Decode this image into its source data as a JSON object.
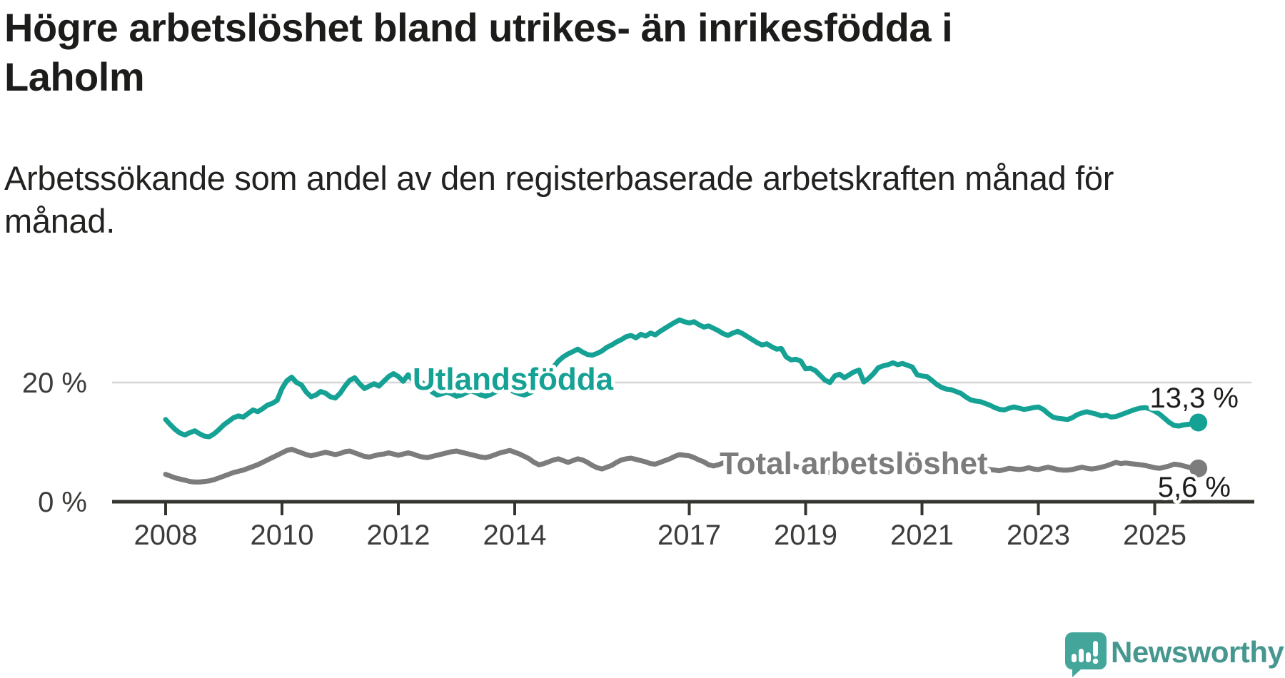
{
  "header": {
    "title": "Högre arbetslöshet bland utrikes- än inrikesfödda i Laholm",
    "subtitle": "Arbetssökande som andel av den registerbaserade arbetskraften månad för månad."
  },
  "footer": {
    "brand": "Newsworthy",
    "logo_icon": "newsworthy-speech-bubble-bar-chart-icon",
    "brand_color": "#46978f",
    "bubble_color": "#44a59b"
  },
  "chart_data": {
    "type": "line",
    "unit": "%",
    "frequency": "monthly",
    "x_start": "2008-01",
    "x_end": "2025-10",
    "grid": "horizontal-gridline-at-20-only",
    "legend_position": "inline-labels-on-lines",
    "x_ticks": [
      2008,
      2010,
      2012,
      2014,
      2017,
      2019,
      2021,
      2023,
      2025
    ],
    "y_ticks": [
      {
        "value": 0,
        "label": "0 %"
      },
      {
        "value": 20,
        "label": "20 %"
      }
    ],
    "ylim": [
      0,
      32
    ],
    "axis_color": "#35342f",
    "tick_label_color": "#3c3c3a",
    "gridline_color": "#d6d6d6",
    "end_label_color": "#1d1d1b",
    "series": [
      {
        "name": "Utlandsfödda",
        "color": "#15a295",
        "end_label": "13,3 %",
        "end_value": 13.3,
        "values": [
          13.8,
          12.9,
          12.1,
          11.5,
          11.2,
          11.6,
          11.9,
          11.4,
          11.0,
          10.9,
          11.4,
          12.1,
          12.9,
          13.5,
          14.1,
          14.4,
          14.2,
          14.8,
          15.4,
          15.1,
          15.6,
          16.2,
          16.5,
          17.0,
          19.0,
          20.3,
          20.9,
          20.0,
          19.6,
          18.4,
          17.6,
          17.9,
          18.5,
          18.2,
          17.6,
          17.4,
          18.2,
          19.4,
          20.4,
          20.8,
          19.8,
          19.0,
          19.4,
          19.8,
          19.4,
          20.2,
          21.0,
          21.5,
          21.0,
          20.2,
          21.3,
          20.4,
          19.8,
          19.9,
          19.2,
          18.4,
          17.9,
          18.1,
          18.4,
          18.1,
          17.7,
          17.9,
          18.3,
          18.6,
          18.3,
          17.9,
          17.7,
          18.0,
          18.4,
          18.8,
          19.1,
          18.8,
          18.4,
          18.1,
          17.9,
          18.2,
          18.7,
          19.3,
          20.1,
          21.3,
          22.6,
          23.6,
          24.3,
          24.8,
          25.2,
          25.6,
          25.1,
          24.7,
          24.6,
          24.9,
          25.3,
          25.9,
          26.3,
          26.8,
          27.2,
          27.7,
          27.9,
          27.5,
          28.1,
          27.8,
          28.3,
          28.0,
          28.6,
          29.1,
          29.6,
          30.1,
          30.5,
          30.2,
          30.0,
          30.2,
          29.7,
          29.3,
          29.5,
          29.1,
          28.7,
          28.2,
          27.9,
          28.3,
          28.6,
          28.2,
          27.7,
          27.2,
          26.7,
          26.3,
          26.5,
          26.0,
          25.6,
          25.7,
          24.3,
          23.8,
          23.9,
          23.6,
          22.3,
          22.4,
          22.0,
          21.2,
          20.4,
          20.0,
          21.1,
          21.4,
          20.8,
          21.3,
          21.8,
          22.1,
          20.1,
          20.7,
          21.5,
          22.5,
          22.8,
          23.0,
          23.3,
          23.0,
          23.2,
          22.9,
          22.6,
          21.3,
          21.1,
          21.0,
          20.4,
          19.7,
          19.2,
          18.9,
          18.8,
          18.5,
          18.2,
          17.6,
          17.1,
          16.9,
          16.8,
          16.5,
          16.2,
          15.8,
          15.5,
          15.4,
          15.7,
          15.9,
          15.7,
          15.5,
          15.6,
          15.8,
          15.9,
          15.5,
          14.8,
          14.2,
          14.0,
          13.9,
          13.8,
          14.1,
          14.6,
          14.9,
          15.1,
          14.9,
          14.7,
          14.4,
          14.5,
          14.2,
          14.3,
          14.6,
          14.9,
          15.2,
          15.5,
          15.7,
          15.8,
          15.6,
          15.2,
          14.7,
          14.0,
          13.3,
          12.8,
          12.7,
          12.9,
          13.0,
          13.1,
          13.3
        ]
      },
      {
        "name": "Total arbetslöshet",
        "color": "#7c7c7c",
        "end_label": "5,6 %",
        "end_value": 5.6,
        "values": [
          4.6,
          4.3,
          4.0,
          3.8,
          3.6,
          3.4,
          3.3,
          3.3,
          3.4,
          3.5,
          3.7,
          4.0,
          4.3,
          4.6,
          4.9,
          5.1,
          5.3,
          5.6,
          5.9,
          6.2,
          6.6,
          7.0,
          7.4,
          7.8,
          8.2,
          8.6,
          8.8,
          8.5,
          8.2,
          7.9,
          7.7,
          7.9,
          8.1,
          8.3,
          8.1,
          7.9,
          8.1,
          8.4,
          8.5,
          8.2,
          7.9,
          7.6,
          7.5,
          7.7,
          7.9,
          8.0,
          8.2,
          8.0,
          7.8,
          8.0,
          8.2,
          8.0,
          7.7,
          7.5,
          7.4,
          7.6,
          7.8,
          8.0,
          8.2,
          8.4,
          8.5,
          8.3,
          8.1,
          7.9,
          7.7,
          7.5,
          7.4,
          7.6,
          7.9,
          8.2,
          8.4,
          8.6,
          8.3,
          8.0,
          7.6,
          7.2,
          6.6,
          6.2,
          6.4,
          6.7,
          7.0,
          7.2,
          6.9,
          6.6,
          6.9,
          7.2,
          7.0,
          6.6,
          6.1,
          5.7,
          5.5,
          5.8,
          6.1,
          6.6,
          7.0,
          7.2,
          7.3,
          7.1,
          6.9,
          6.7,
          6.4,
          6.3,
          6.6,
          6.9,
          7.2,
          7.6,
          7.9,
          7.8,
          7.7,
          7.4,
          7.0,
          6.7,
          6.2,
          6.0,
          6.2,
          6.5,
          6.7,
          6.9,
          6.7,
          6.5,
          6.6,
          6.4,
          6.1,
          5.8,
          5.5,
          5.3,
          5.5,
          5.7,
          5.9,
          6.1,
          5.9,
          5.7,
          5.8,
          5.6,
          5.4,
          5.2,
          5.0,
          4.9,
          5.1,
          5.3,
          5.5,
          5.6,
          5.8,
          6.0,
          6.2,
          6.4,
          6.7,
          7.0,
          7.2,
          7.3,
          7.2,
          7.0,
          6.8,
          6.6,
          6.4,
          6.3,
          6.4,
          6.5,
          6.3,
          6.1,
          5.9,
          5.7,
          5.6,
          5.5,
          5.4,
          5.3,
          5.2,
          5.3,
          5.4,
          5.5,
          5.4,
          5.3,
          5.2,
          5.4,
          5.6,
          5.5,
          5.4,
          5.5,
          5.7,
          5.5,
          5.4,
          5.6,
          5.8,
          5.6,
          5.4,
          5.3,
          5.3,
          5.4,
          5.6,
          5.8,
          5.6,
          5.5,
          5.6,
          5.8,
          6.0,
          6.3,
          6.6,
          6.4,
          6.5,
          6.4,
          6.3,
          6.2,
          6.1,
          5.9,
          5.7,
          5.6,
          5.8,
          6.0,
          6.3,
          6.2,
          6.0,
          5.8,
          5.7,
          5.6
        ]
      }
    ]
  }
}
